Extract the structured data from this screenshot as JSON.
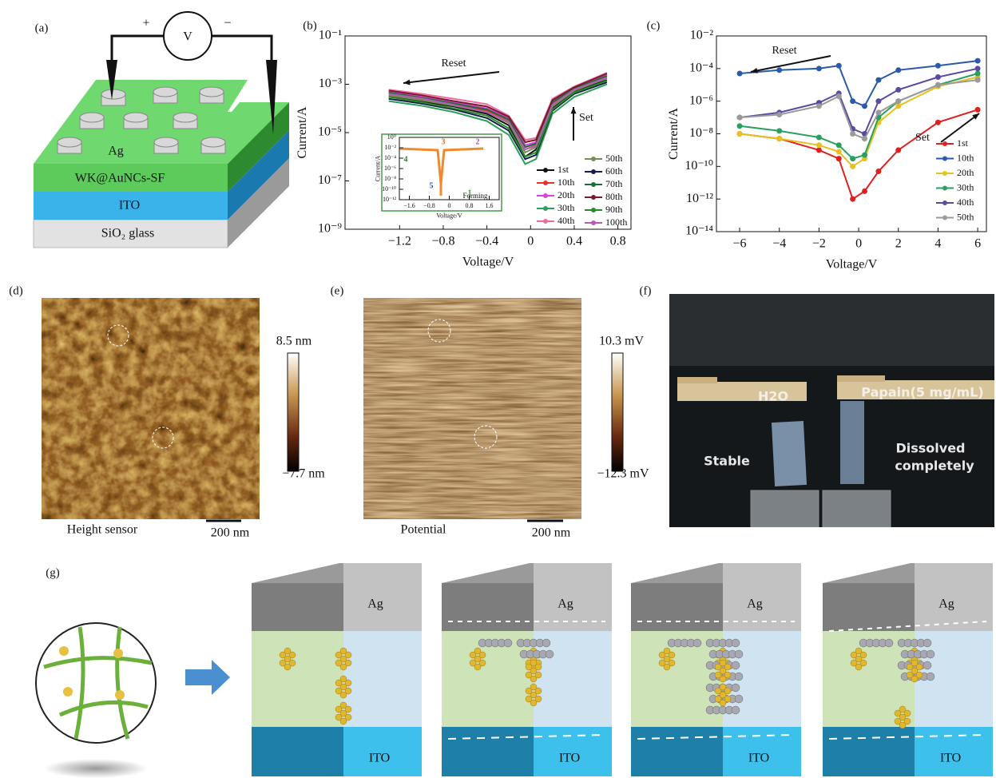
{
  "panel_labels": [
    "(a)",
    "(b)",
    "(c)",
    "(d)",
    "(e)",
    "(f)",
    "(g)"
  ],
  "device": {
    "plus": "+",
    "meter": "V",
    "minus": "−",
    "top": "Ag",
    "layer": "WK@AuNCs-SF",
    "electrode": "ITO",
    "substrate": "SiO₂ glass"
  },
  "chart_data": [
    {
      "type": "line",
      "log_y": true,
      "xlabel": "Voltage/V",
      "ylabel": "Current/A",
      "annotations": [
        "Reset",
        "Set"
      ],
      "xlim": [
        -1.7,
        0.92
      ],
      "ylim": [
        1e-09,
        0.1
      ],
      "xticks": [
        {
          "value": -1.2,
          "label": "−1.2"
        },
        {
          "value": -0.8,
          "label": "−0.8"
        },
        {
          "value": -0.4,
          "label": "−0.4"
        },
        0,
        0.4,
        0.8
      ],
      "yticks": [
        {
          "value": 0.1,
          "label": "10⁻¹"
        },
        {
          "value": 0.001,
          "label": "10⁻³"
        },
        {
          "value": 1e-05,
          "label": "10⁻⁵"
        },
        {
          "value": 1e-07,
          "label": "10⁻⁷"
        },
        {
          "value": 1e-09,
          "label": "10⁻⁹"
        }
      ],
      "x": [
        -1.3,
        -1.0,
        -0.7,
        -0.4,
        -0.2,
        -0.05,
        0.05,
        0.2,
        0.4,
        0.7
      ],
      "series": [
        {
          "name": "1st",
          "color": "#111111",
          "values": [
            0.0003,
            0.0002,
            0.00012,
            6e-05,
            2e-05,
            1e-06,
            2e-06,
            0.0001,
            0.0005,
            0.0015
          ]
        },
        {
          "name": "10th",
          "color": "#e8312a",
          "values": [
            0.0004,
            0.00025,
            0.00015,
            8e-05,
            3e-05,
            2e-06,
            3e-06,
            0.00015,
            0.0006,
            0.002
          ]
        },
        {
          "name": "20th",
          "color": "#e040e0",
          "values": [
            0.0005,
            0.0003,
            0.00018,
            0.0001,
            4e-05,
            3e-06,
            4e-06,
            0.0002,
            0.0007,
            0.0025
          ]
        },
        {
          "name": "30th",
          "color": "#2aa05a",
          "values": [
            0.0002,
            0.00013,
            7e-05,
            3e-05,
            8e-06,
            5e-07,
            8e-07,
            6e-05,
            0.0003,
            0.001
          ]
        },
        {
          "name": "40th",
          "color": "#f06aa0",
          "values": [
            0.0006,
            0.0004,
            0.00025,
            0.00015,
            5e-05,
            5e-06,
            6e-06,
            0.00025,
            0.0008,
            0.003
          ]
        },
        {
          "name": "50th",
          "color": "#7a8a5a",
          "values": [
            0.00035,
            0.00022,
            0.00013,
            7e-05,
            2.5e-05,
            1.5e-06,
            2.5e-06,
            0.00012,
            0.00055,
            0.0018
          ]
        },
        {
          "name": "60th",
          "color": "#1a1a4a",
          "values": [
            0.00025,
            0.00016,
            9e-05,
            4e-05,
            1.2e-05,
            8e-07,
            1.2e-06,
            8e-05,
            0.0004,
            0.0012
          ]
        },
        {
          "name": "70th",
          "color": "#1f6a3a",
          "values": [
            0.00045,
            0.00028,
            0.00016,
            9e-05,
            3.5e-05,
            2.5e-06,
            3.5e-06,
            0.00018,
            0.00065,
            0.0022
          ]
        },
        {
          "name": "80th",
          "color": "#7a1a2a",
          "values": [
            0.00055,
            0.00035,
            0.0002,
            0.00012,
            4.5e-05,
            4e-06,
            5e-06,
            0.00022,
            0.00075,
            0.0028
          ]
        },
        {
          "name": "90th",
          "color": "#2a8a2a",
          "values": [
            0.0003,
            0.00018,
            0.0001,
            5e-05,
            1.5e-05,
            1e-06,
            1.5e-06,
            9e-05,
            0.00045,
            0.0014
          ]
        },
        {
          "name": "100th",
          "color": "#b060b0",
          "values": [
            0.0004,
            0.00026,
            0.00014,
            7e-05,
            2.8e-05,
            2e-06,
            2.8e-06,
            0.00014,
            0.0006,
            0.0019
          ]
        }
      ],
      "inset": {
        "xlabel": "Voltage/V",
        "ylabel": "Current/A",
        "annotations": [
          "Forming"
        ],
        "steps": [
          "1",
          "2",
          "3",
          "4",
          "5"
        ],
        "log_y": true,
        "xlim": [
          -2,
          2
        ],
        "ylim": [
          1e-12,
          1
        ],
        "xticks": [
          {
            "value": -1.6,
            "label": "−1.6"
          },
          {
            "value": -0.8,
            "label": "−0.8"
          },
          0,
          0.8,
          1.6
        ],
        "yticks": [
          {
            "value": 1,
            "label": "10⁰"
          },
          {
            "value": 0.01,
            "label": "10⁻²"
          },
          {
            "value": 0.0001,
            "label": "10⁻⁴"
          },
          {
            "value": 1e-06,
            "label": "10⁻⁶"
          },
          {
            "value": 1e-08,
            "label": "10⁻⁸"
          },
          {
            "value": 1e-10,
            "label": "10⁻¹⁰"
          },
          {
            "value": 1e-12,
            "label": "10⁻¹²"
          }
        ]
      }
    },
    {
      "type": "line",
      "log_y": true,
      "markers": true,
      "xlabel": "Voltage/V",
      "ylabel": "Current/A",
      "annotations": [
        "Reset",
        "Set"
      ],
      "xlim": [
        -7.17,
        6.44
      ],
      "ylim": [
        1e-14,
        0.01
      ],
      "xticks": [
        {
          "value": -6,
          "label": "−6"
        },
        {
          "value": -4,
          "label": "−4"
        },
        {
          "value": -2,
          "label": "−2"
        },
        0,
        2,
        4,
        6
      ],
      "yticks": [
        {
          "value": 0.01,
          "label": "10⁻²"
        },
        {
          "value": 0.0001,
          "label": "10⁻⁴"
        },
        {
          "value": 1e-06,
          "label": "10⁻⁶"
        },
        {
          "value": 1e-08,
          "label": "10⁻⁸"
        },
        {
          "value": 1e-10,
          "label": "10⁻¹⁰"
        },
        {
          "value": 1e-12,
          "label": "10⁻¹²"
        },
        {
          "value": 1e-14,
          "label": "10⁻¹⁴"
        }
      ],
      "x": [
        -6,
        -4,
        -2,
        -1,
        -0.3,
        0.3,
        1,
        2,
        4,
        6
      ],
      "series": [
        {
          "name": "1st",
          "color": "#e02020",
          "values": [
            1e-08,
            5e-09,
            1e-09,
            3e-10,
            1e-12,
            3e-12,
            5e-11,
            1e-09,
            5e-08,
            3e-07
          ]
        },
        {
          "name": "10th",
          "color": "#2a5aa8",
          "values": [
            5e-05,
            8e-05,
            0.0001,
            0.00015,
            1e-06,
            5e-07,
            2e-05,
            8e-05,
            0.00015,
            0.0003
          ]
        },
        {
          "name": "20th",
          "color": "#e8c020",
          "values": [
            1e-08,
            5e-09,
            2e-09,
            8e-10,
            1e-10,
            3e-10,
            5e-08,
            5e-07,
            8e-06,
            3e-05
          ]
        },
        {
          "name": "30th",
          "color": "#2aa060",
          "values": [
            3e-08,
            1.5e-08,
            6e-09,
            2e-09,
            3e-10,
            5e-10,
            1e-07,
            1e-06,
            1e-05,
            5e-05
          ]
        },
        {
          "name": "40th",
          "color": "#5a4aa0",
          "values": [
            1e-07,
            2e-07,
            8e-07,
            3e-06,
            2e-08,
            1e-08,
            1e-06,
            5e-06,
            3e-05,
            0.0001
          ]
        },
        {
          "name": "50th",
          "color": "#9a9a9a",
          "values": [
            1e-07,
            1.5e-07,
            5e-07,
            2e-06,
            1e-08,
            5e-09,
            2e-07,
            1e-06,
            1e-05,
            2e-05
          ]
        }
      ]
    }
  ],
  "afm": [
    {
      "scale_max": "8.5 nm",
      "scale_min": "−7.7 nm",
      "caption": "Height sensor",
      "scale_bar": "200 nm"
    },
    {
      "scale_max": "10.3 mV",
      "scale_min": "−12.3 mV",
      "caption": "Potential",
      "scale_bar": "200 nm"
    }
  ],
  "photo": {
    "left_label": "H2O",
    "right_label": "Papain(5 mg/mL)",
    "left_result": "Stable",
    "right_result": [
      "Dissolved",
      "completely"
    ]
  },
  "mechanism": {
    "stages": [
      {
        "top": "Ag",
        "bottom": "ITO"
      },
      {
        "top": "Ag",
        "bottom": "ITO"
      },
      {
        "top": "Ag",
        "bottom": "ITO"
      },
      {
        "top": "Ag",
        "bottom": "ITO"
      }
    ]
  }
}
